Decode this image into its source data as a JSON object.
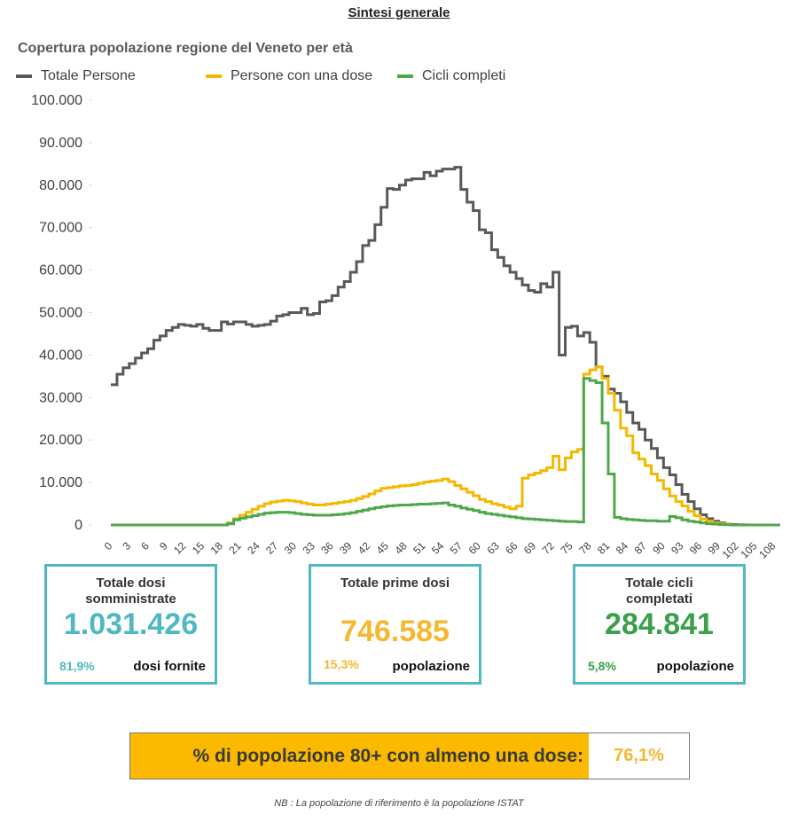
{
  "page": {
    "title": "Sintesi generale",
    "note": "NB : La popolazione di riferimento è la popolazione ISTAT"
  },
  "colors": {
    "totale": "#595959",
    "una_dose": "#f5b800",
    "cicli": "#4ea84a",
    "box_border": "#4fb8c3",
    "dosi_value": "#4fb8c3",
    "banner_bg": "#fbb900"
  },
  "chart_data": {
    "type": "line",
    "title": "Copertura popolazione regione del Veneto per età",
    "xlabel": "",
    "ylabel": "",
    "ylim": [
      0,
      100000
    ],
    "xlim": [
      0,
      108
    ],
    "grid": false,
    "legend_position": "top-left",
    "step": true,
    "y_ticks": [
      "0",
      "10.000",
      "20.000",
      "30.000",
      "40.000",
      "50.000",
      "60.000",
      "70.000",
      "80.000",
      "90.000",
      "100.000"
    ],
    "x_ticks": [
      "0",
      "3",
      "6",
      "9",
      "12",
      "15",
      "18",
      "21",
      "24",
      "27",
      "30",
      "33",
      "36",
      "39",
      "42",
      "45",
      "48",
      "51",
      "54",
      "57",
      "60",
      "63",
      "66",
      "69",
      "72",
      "75",
      "78",
      "81",
      "84",
      "87",
      "90",
      "93",
      "96",
      "99",
      "102",
      "105",
      "108"
    ],
    "series": [
      {
        "name": "Totale Persone",
        "color": "#595959",
        "values": [
          33000,
          35500,
          37000,
          38000,
          39300,
          40500,
          41500,
          43500,
          44500,
          45800,
          46500,
          47200,
          47000,
          46800,
          47200,
          46300,
          45800,
          45800,
          47800,
          47300,
          47800,
          47800,
          47200,
          46800,
          47000,
          47200,
          48000,
          49200,
          49500,
          50000,
          50000,
          51000,
          49500,
          49800,
          52500,
          52800,
          54000,
          56000,
          57300,
          59500,
          62000,
          65800,
          67000,
          70700,
          74800,
          79200,
          79000,
          80000,
          81200,
          81500,
          81500,
          83000,
          82200,
          83300,
          83800,
          83800,
          84200,
          79000,
          76000,
          74000,
          69500,
          68800,
          64800,
          63000,
          61000,
          59500,
          58000,
          56500,
          55200,
          54800,
          56800,
          56000,
          59500,
          40000,
          46500,
          46800,
          44500,
          45300,
          43000,
          37200,
          35000,
          32000,
          31000,
          29000,
          26500,
          24000,
          22500,
          20000,
          18000,
          15800,
          13500,
          11800,
          9500,
          7200,
          5500,
          3800,
          2400,
          1500,
          900,
          500,
          200,
          100,
          50,
          20,
          10,
          0,
          0,
          0,
          0
        ]
      },
      {
        "name": "Persone con una dose",
        "color": "#f5b800",
        "values": [
          0,
          0,
          0,
          0,
          0,
          0,
          0,
          0,
          0,
          0,
          0,
          0,
          0,
          0,
          0,
          0,
          0,
          0,
          0,
          500,
          1500,
          2300,
          3000,
          3700,
          4400,
          5000,
          5400,
          5600,
          5800,
          5700,
          5500,
          5200,
          4900,
          4700,
          4700,
          4900,
          5100,
          5300,
          5500,
          5800,
          6200,
          6700,
          7300,
          8000,
          8600,
          8800,
          9000,
          9200,
          9300,
          9500,
          9800,
          10100,
          10300,
          10500,
          10800,
          10200,
          9300,
          8500,
          7700,
          6900,
          6000,
          5500,
          5000,
          4700,
          4200,
          3800,
          4400,
          11000,
          11800,
          12200,
          12800,
          13500,
          16200,
          13000,
          15800,
          17200,
          17800,
          35500,
          36500,
          37200,
          34500,
          31000,
          27000,
          22800,
          21000,
          17000,
          15500,
          14000,
          12000,
          10500,
          8500,
          6800,
          5500,
          4500,
          3200,
          2200,
          1400,
          900,
          500,
          300,
          150,
          0,
          0,
          0,
          0,
          0,
          0,
          0,
          0
        ]
      },
      {
        "name": "Cicli completi",
        "color": "#4ea84a",
        "values": [
          0,
          0,
          0,
          0,
          0,
          0,
          0,
          0,
          0,
          0,
          0,
          0,
          0,
          0,
          0,
          0,
          0,
          0,
          0,
          300,
          1200,
          1600,
          1900,
          2200,
          2500,
          2800,
          2900,
          3000,
          3000,
          2900,
          2700,
          2500,
          2400,
          2300,
          2300,
          2300,
          2400,
          2500,
          2700,
          2900,
          3200,
          3500,
          3800,
          4100,
          4300,
          4500,
          4600,
          4700,
          4700,
          4800,
          4900,
          4900,
          5000,
          5100,
          5200,
          4700,
          4400,
          4000,
          3700,
          3400,
          3000,
          2700,
          2500,
          2300,
          2100,
          1900,
          1700,
          1500,
          1400,
          1300,
          1200,
          1100,
          1000,
          900,
          800,
          800,
          700,
          34500,
          34000,
          33500,
          24000,
          12000,
          1800,
          1500,
          1300,
          1200,
          1100,
          1000,
          1000,
          900,
          900,
          2000,
          1700,
          1200,
          900,
          700,
          500,
          300,
          200,
          100,
          50,
          0,
          0,
          0,
          0,
          0,
          0,
          0,
          0
        ]
      }
    ]
  },
  "boxes": [
    {
      "title_line1": "Totale dosi",
      "title_line2": "somministrate",
      "value": "1.031.426",
      "pct": "81,9%",
      "desc": "dosi fornite",
      "color": "#4fb8c3"
    },
    {
      "title_line1": "Totale prime dosi",
      "title_line2": "",
      "value": "746.585",
      "pct": "15,3%",
      "desc": "popolazione",
      "color": "#f5b82e"
    },
    {
      "title_line1": "Totale cicli",
      "title_line2": "completati",
      "value": "284.841",
      "pct": "5,8%",
      "desc": "popolazione",
      "color": "#3aa04a"
    }
  ],
  "banner": {
    "label": "% di popolazione 80+ con almeno una dose:",
    "value": "76,1%"
  }
}
